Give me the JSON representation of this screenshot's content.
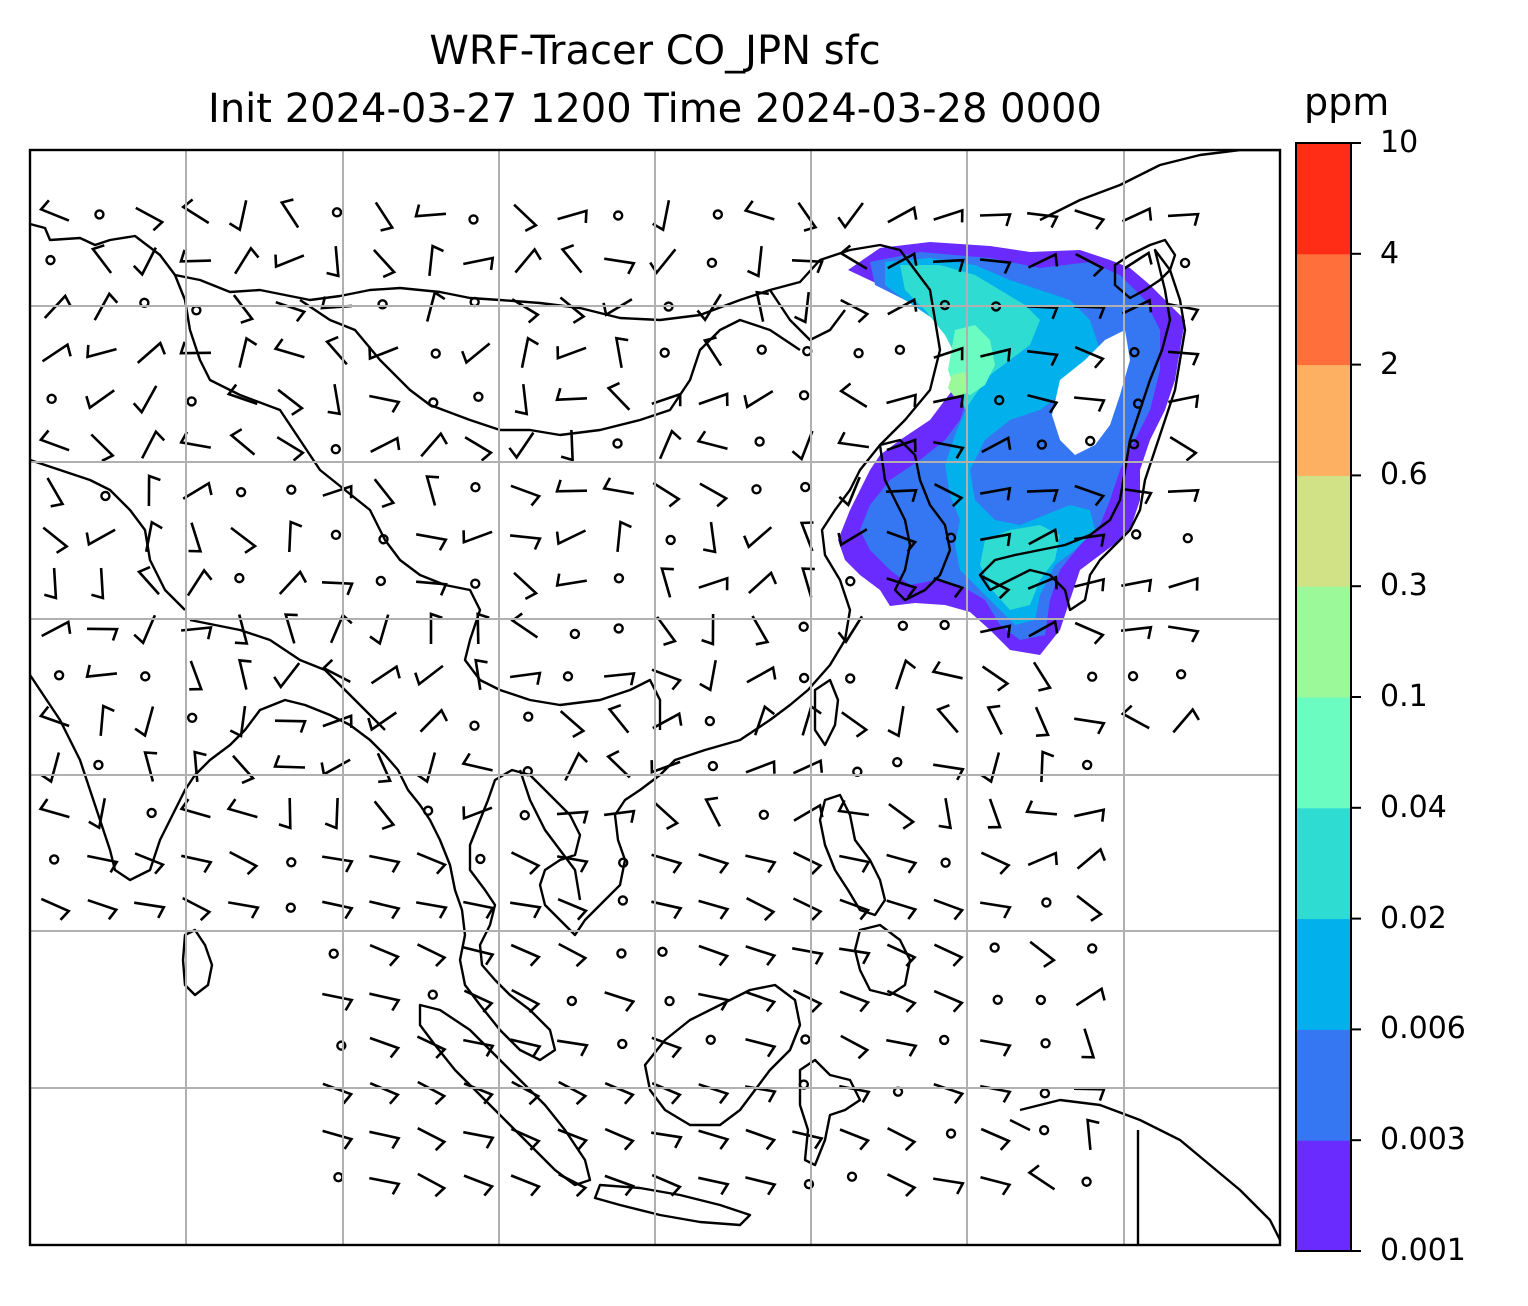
{
  "title": {
    "line1": "WRF-Tracer CO_JPN sfc",
    "line2": "Init 2024-03-27 1200 Time 2024-03-28 0000"
  },
  "colorbar": {
    "unit": "ppm",
    "levels": [
      "0.001",
      "0.003",
      "0.006",
      "0.02",
      "0.04",
      "0.1",
      "0.3",
      "0.6",
      "2",
      "4",
      "10"
    ],
    "colors": [
      "#6a2bff",
      "#3577f2",
      "#02b0eb",
      "#2fdcd2",
      "#6bfcc2",
      "#9bf99a",
      "#d0e186",
      "#feb062",
      "#fe6f3c",
      "#ff2d16"
    ]
  },
  "map": {
    "region": "East and Southeast Asia",
    "gridlines": true,
    "wind_barbs": true,
    "tracer_plume": "CO emitted from Japan, spread over Japan, Korea, Sea of Japan and northeast China"
  },
  "icons": {
    "coastline": "coastline-icon",
    "wind": "wind-barb-icon",
    "calm": "calm-circle-icon"
  }
}
